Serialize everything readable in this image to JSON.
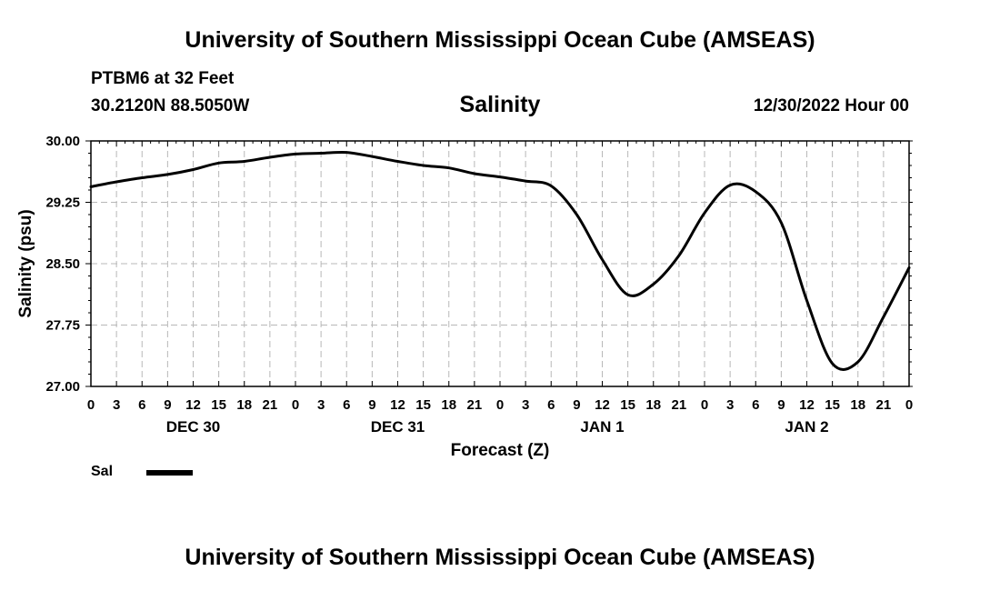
{
  "header": {
    "title": "University of Southern Mississippi Ocean Cube (AMSEAS)",
    "station": "PTBM6 at 32 Feet",
    "coordinates": "30.2120N  88.5050W",
    "variable": "Salinity",
    "timestamp": "12/30/2022 Hour 00"
  },
  "footer": {
    "title": "University of Southern Mississippi Ocean Cube (AMSEAS)"
  },
  "legend": {
    "label": "Sal",
    "color": "#000000"
  },
  "chart_data": {
    "type": "line",
    "title": "Salinity",
    "xlabel": "Forecast (Z)",
    "ylabel": "Salinity (psu)",
    "ylim": [
      27.0,
      30.0
    ],
    "xlim": [
      0,
      96
    ],
    "grid": true,
    "legend_position": "bottom-left",
    "y_ticks": [
      "27.00",
      "27.75",
      "28.50",
      "29.25",
      "30.00"
    ],
    "x_tick_labels": [
      "0",
      "3",
      "6",
      "9",
      "12",
      "15",
      "18",
      "21",
      "0",
      "3",
      "6",
      "9",
      "12",
      "15",
      "18",
      "21",
      "0",
      "3",
      "6",
      "9",
      "12",
      "15",
      "18",
      "21",
      "0",
      "3",
      "6",
      "9",
      "12",
      "15",
      "18",
      "21",
      "0"
    ],
    "day_labels": [
      {
        "label": "DEC 30",
        "hour": 12
      },
      {
        "label": "DEC 31",
        "hour": 36
      },
      {
        "label": "JAN 1",
        "hour": 60
      },
      {
        "label": "JAN 2",
        "hour": 84
      }
    ],
    "series": [
      {
        "name": "Sal",
        "x": [
          0,
          3,
          6,
          9,
          12,
          15,
          18,
          21,
          24,
          27,
          30,
          33,
          36,
          39,
          42,
          45,
          48,
          51,
          54,
          57,
          60,
          63,
          66,
          69,
          72,
          75,
          78,
          81,
          84,
          87,
          90,
          93,
          96
        ],
        "values": [
          29.44,
          29.5,
          29.55,
          29.59,
          29.65,
          29.73,
          29.75,
          29.8,
          29.84,
          29.85,
          29.86,
          29.81,
          29.75,
          29.7,
          29.67,
          29.6,
          29.56,
          29.51,
          29.45,
          29.1,
          28.55,
          28.12,
          28.25,
          28.6,
          29.12,
          29.46,
          29.38,
          29.0,
          28.05,
          27.28,
          27.3,
          27.85,
          28.45
        ]
      }
    ]
  }
}
